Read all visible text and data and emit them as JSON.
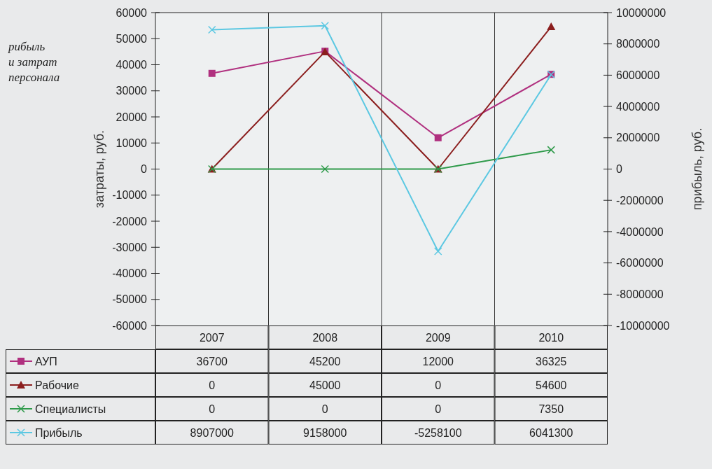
{
  "chart_data": {
    "type": "line",
    "annotations": [
      "рибыль",
      "и затрат",
      "персонала"
    ],
    "ylabel": "затраты, руб.",
    "y2label": "прибыль, руб.",
    "categories": [
      "2007",
      "2008",
      "2009",
      "2010"
    ],
    "series": [
      {
        "name": "АУП",
        "color": "#b0307f",
        "marker": "square",
        "values": [
          36700,
          45200,
          12000,
          36325
        ]
      },
      {
        "name": "Рабочие",
        "color": "#8b1e1e",
        "marker": "triangle",
        "values": [
          0,
          45000,
          0,
          54600
        ]
      },
      {
        "name": "Специалисты",
        "color": "#2e9a4a",
        "marker": "cross",
        "values": [
          0,
          0,
          0,
          7350
        ]
      },
      {
        "name": "Прибыль",
        "color": "#5cc8e2",
        "marker": "cross",
        "axis": "y2",
        "values": [
          8907000,
          9158000,
          -5258100,
          6041300
        ]
      }
    ],
    "ylim": [
      -60000,
      60000
    ],
    "yticks": [
      -60000,
      -50000,
      -40000,
      -30000,
      -20000,
      -10000,
      0,
      10000,
      20000,
      30000,
      40000,
      50000,
      60000
    ],
    "y2lim": [
      -10000000,
      10000000
    ],
    "y2ticks": [
      -10000000,
      -8000000,
      -6000000,
      -4000000,
      -2000000,
      0,
      2000000,
      4000000,
      6000000,
      8000000,
      10000000
    ],
    "grid": "x",
    "legend": "bottom",
    "data_labels": true
  }
}
